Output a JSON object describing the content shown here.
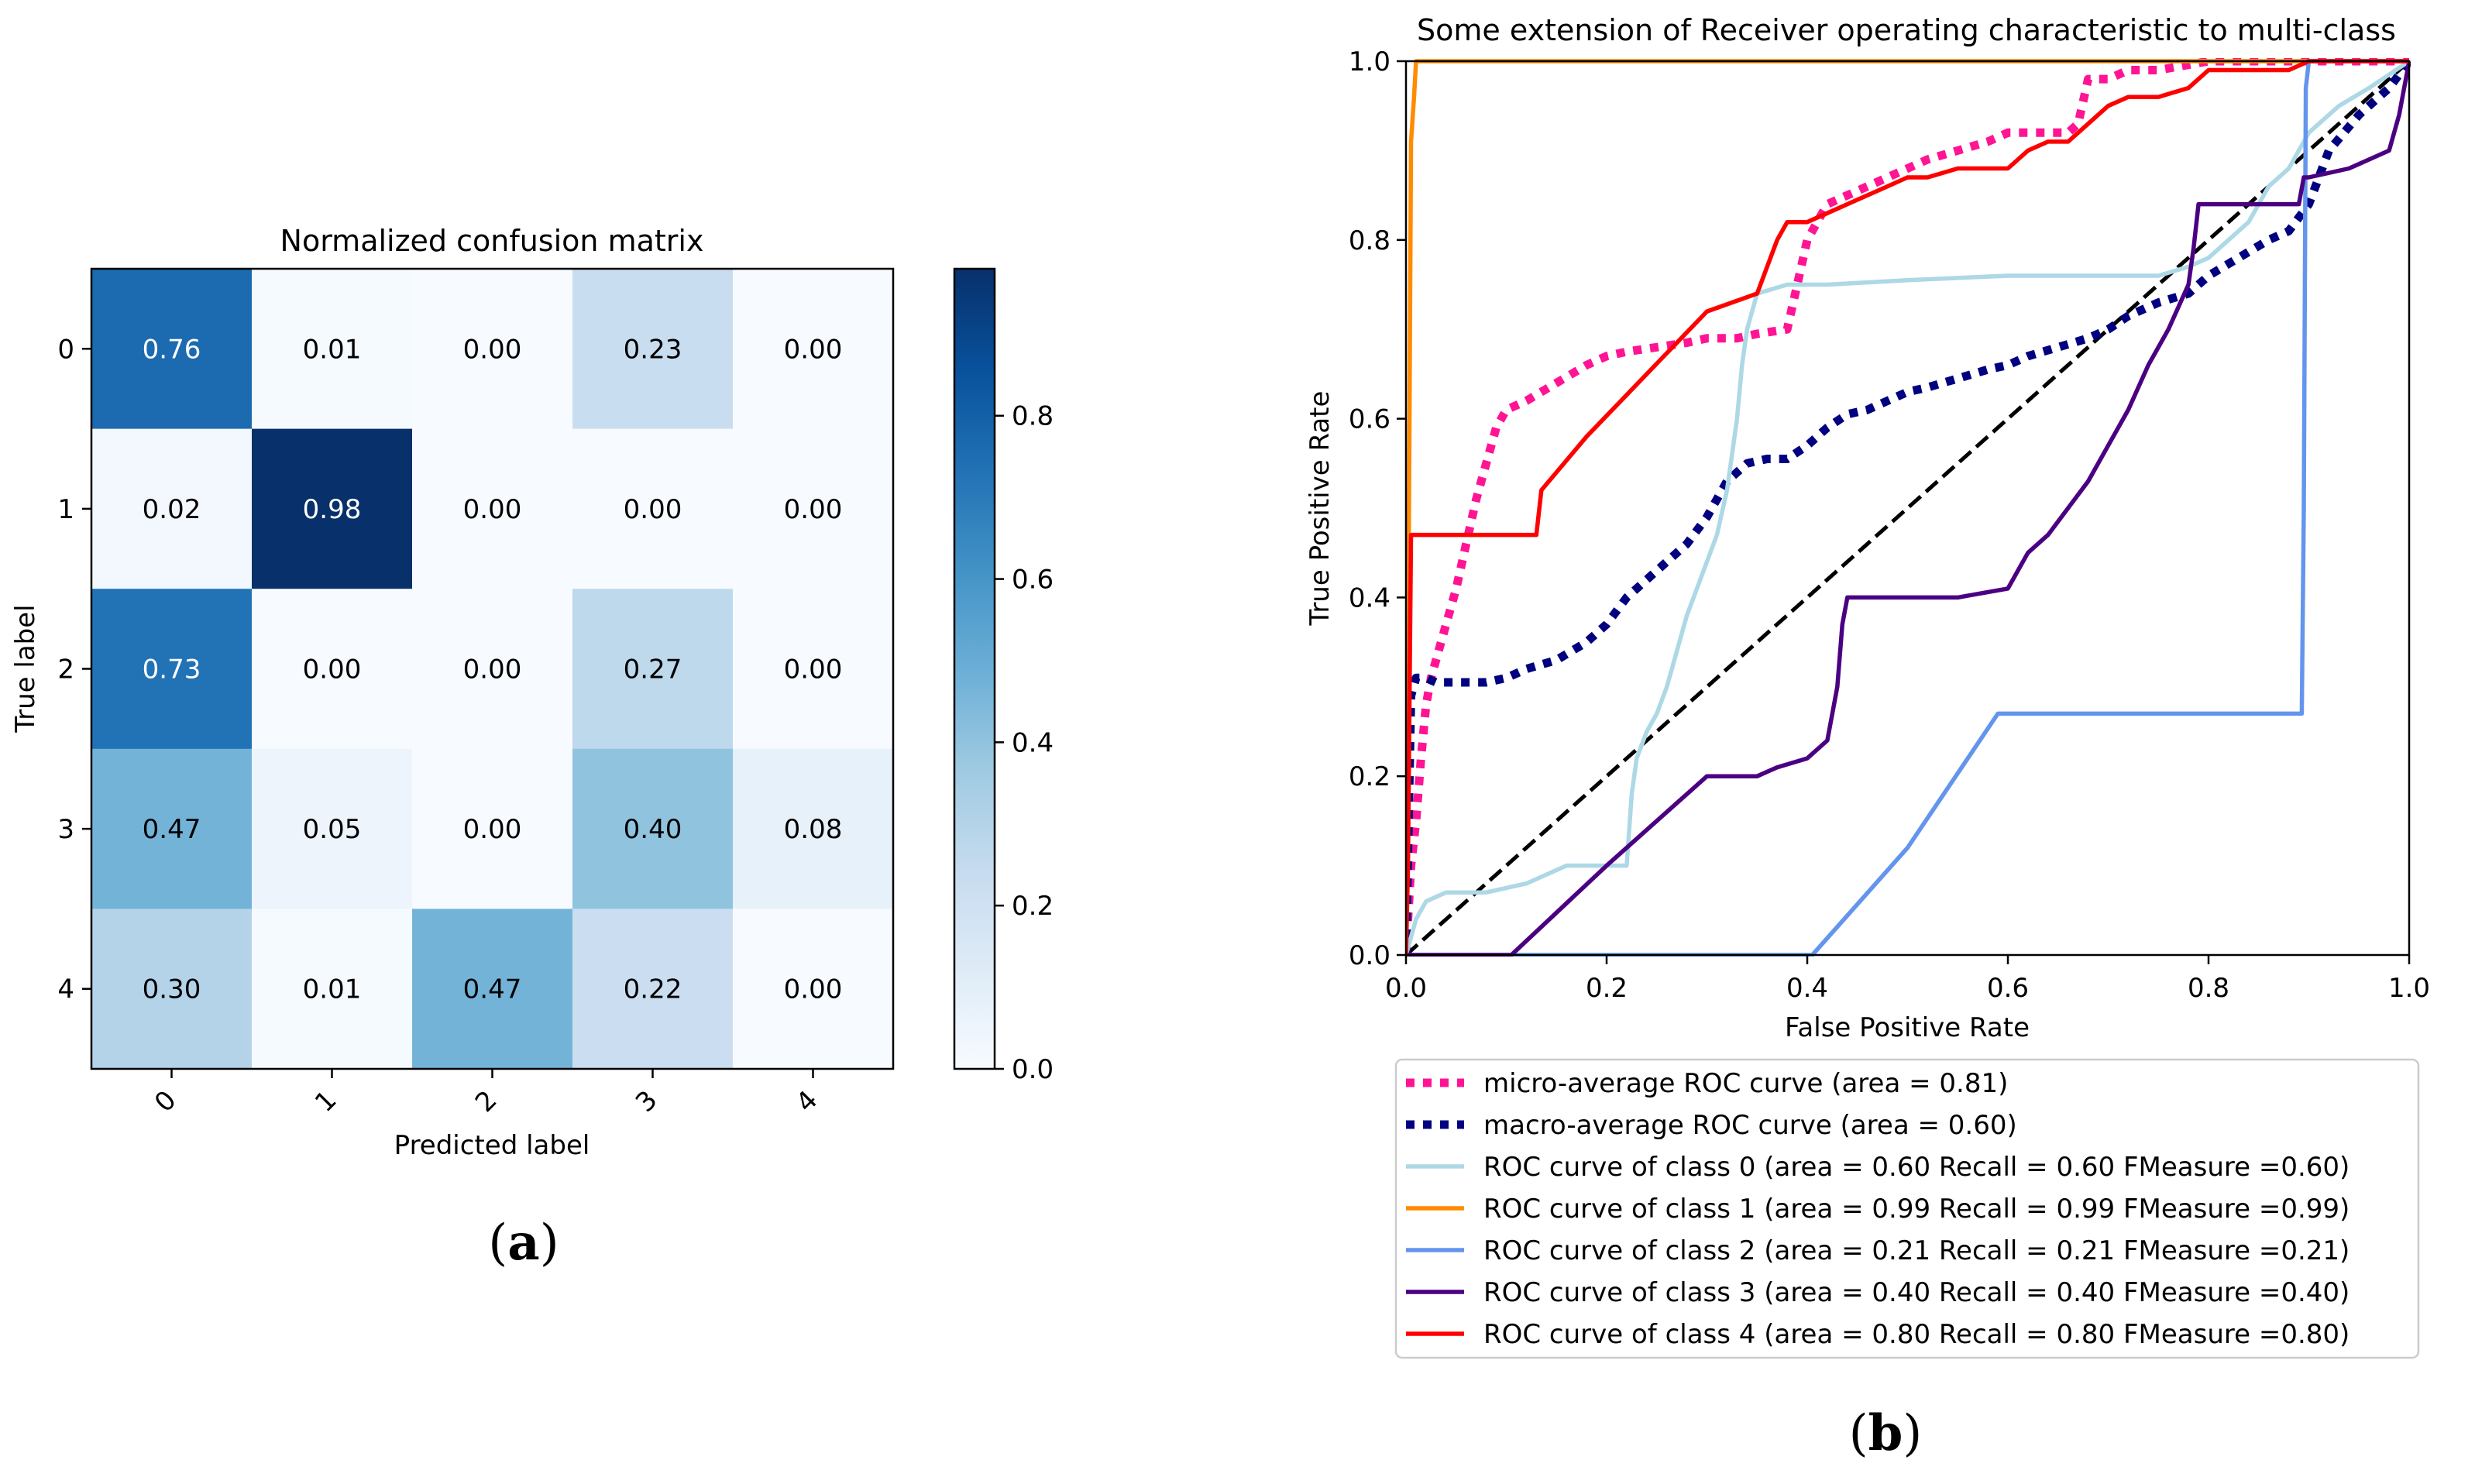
{
  "panel_labels": {
    "a": "a",
    "b": "b"
  },
  "chart_data": [
    {
      "type": "heatmap",
      "title": "Normalized confusion matrix",
      "xlabel": "Predicted label",
      "ylabel": "True label",
      "x_ticks": [
        "0",
        "1",
        "2",
        "3",
        "4"
      ],
      "y_ticks": [
        "0",
        "1",
        "2",
        "3",
        "4"
      ],
      "values": [
        [
          0.76,
          0.01,
          0.0,
          0.23,
          0.0
        ],
        [
          0.02,
          0.98,
          0.0,
          0.0,
          0.0
        ],
        [
          0.73,
          0.0,
          0.0,
          0.27,
          0.0
        ],
        [
          0.47,
          0.05,
          0.0,
          0.4,
          0.08
        ],
        [
          0.3,
          0.01,
          0.47,
          0.22,
          0.0
        ]
      ],
      "cell_labels": [
        [
          "0.76",
          "0.01",
          "0.00",
          "0.23",
          "0.00"
        ],
        [
          "0.02",
          "0.98",
          "0.00",
          "0.00",
          "0.00"
        ],
        [
          "0.73",
          "0.00",
          "0.00",
          "0.27",
          "0.00"
        ],
        [
          "0.47",
          "0.05",
          "0.00",
          "0.40",
          "0.08"
        ],
        [
          "0.30",
          "0.01",
          "0.47",
          "0.22",
          "0.00"
        ]
      ],
      "colorbar": {
        "min": 0.0,
        "max": 0.98,
        "ticks": [
          0.0,
          0.2,
          0.4,
          0.6,
          0.8
        ],
        "tick_labels": [
          "0.0",
          "0.2",
          "0.4",
          "0.6",
          "0.8"
        ],
        "colormap": "Blues",
        "low_color": "#f7fbff",
        "high_color": "#08306b"
      }
    },
    {
      "type": "line",
      "title": "Some extension of Receiver operating characteristic to multi-class",
      "xlabel": "False Positive Rate",
      "ylabel": "True Positive Rate",
      "xlim": [
        0.0,
        1.0
      ],
      "ylim": [
        0.0,
        1.0
      ],
      "x_ticks": [
        0.0,
        0.2,
        0.4,
        0.6,
        0.8,
        1.0
      ],
      "x_tick_labels": [
        "0.0",
        "0.2",
        "0.4",
        "0.6",
        "0.8",
        "1.0"
      ],
      "y_ticks": [
        0.0,
        0.2,
        0.4,
        0.6,
        0.8,
        1.0
      ],
      "y_tick_labels": [
        "0.0",
        "0.2",
        "0.4",
        "0.6",
        "0.8",
        "1.0"
      ],
      "legend_position": "below",
      "series": [
        {
          "name": "micro-average ROC curve (area = 0.81)",
          "color": "#ff1493",
          "style": "dotted",
          "width": "thick",
          "x": [
            0.0,
            0.005,
            0.01,
            0.015,
            0.02,
            0.025,
            0.03,
            0.04,
            0.05,
            0.06,
            0.07,
            0.08,
            0.09,
            0.1,
            0.12,
            0.15,
            0.18,
            0.2,
            0.22,
            0.25,
            0.28,
            0.3,
            0.33,
            0.35,
            0.38,
            0.39,
            0.4,
            0.42,
            0.44,
            0.46,
            0.48,
            0.5,
            0.52,
            0.55,
            0.58,
            0.6,
            0.62,
            0.64,
            0.66,
            0.67,
            0.68,
            0.7,
            0.72,
            0.75,
            0.8,
            0.9,
            1.0
          ],
          "y": [
            0.0,
            0.1,
            0.15,
            0.22,
            0.28,
            0.31,
            0.33,
            0.37,
            0.41,
            0.46,
            0.51,
            0.55,
            0.59,
            0.61,
            0.62,
            0.64,
            0.66,
            0.67,
            0.675,
            0.68,
            0.685,
            0.69,
            0.69,
            0.695,
            0.7,
            0.75,
            0.8,
            0.84,
            0.85,
            0.86,
            0.87,
            0.88,
            0.89,
            0.9,
            0.91,
            0.92,
            0.92,
            0.92,
            0.92,
            0.93,
            0.98,
            0.98,
            0.99,
            0.99,
            1.0,
            1.0,
            1.0
          ]
        },
        {
          "name": "macro-average ROC curve (area = 0.60)",
          "color": "#000080",
          "style": "dotted",
          "width": "thick",
          "x": [
            0.0,
            0.005,
            0.01,
            0.02,
            0.03,
            0.05,
            0.08,
            0.1,
            0.12,
            0.15,
            0.18,
            0.2,
            0.22,
            0.24,
            0.26,
            0.28,
            0.3,
            0.32,
            0.34,
            0.36,
            0.38,
            0.4,
            0.42,
            0.44,
            0.46,
            0.48,
            0.5,
            0.52,
            0.55,
            0.58,
            0.6,
            0.62,
            0.65,
            0.68,
            0.7,
            0.72,
            0.75,
            0.78,
            0.8,
            0.83,
            0.86,
            0.88,
            0.9,
            0.92,
            0.95,
            0.98,
            1.0
          ],
          "y": [
            0.0,
            0.29,
            0.31,
            0.31,
            0.305,
            0.305,
            0.305,
            0.31,
            0.32,
            0.33,
            0.35,
            0.37,
            0.4,
            0.42,
            0.44,
            0.46,
            0.49,
            0.53,
            0.55,
            0.555,
            0.555,
            0.57,
            0.59,
            0.605,
            0.61,
            0.62,
            0.63,
            0.635,
            0.645,
            0.655,
            0.66,
            0.67,
            0.68,
            0.69,
            0.7,
            0.715,
            0.73,
            0.74,
            0.76,
            0.78,
            0.8,
            0.81,
            0.84,
            0.9,
            0.94,
            0.97,
            1.0
          ]
        },
        {
          "name": "ROC curve of class 0 (area = 0.60  Recall = 0.60 FMeasure =0.60)",
          "color": "#add8e6",
          "style": "solid",
          "width": "normal",
          "x": [
            0.0,
            0.005,
            0.01,
            0.015,
            0.02,
            0.04,
            0.08,
            0.12,
            0.16,
            0.2,
            0.22,
            0.225,
            0.23,
            0.24,
            0.25,
            0.26,
            0.27,
            0.28,
            0.29,
            0.3,
            0.31,
            0.32,
            0.325,
            0.33,
            0.335,
            0.34,
            0.35,
            0.38,
            0.42,
            0.5,
            0.6,
            0.7,
            0.75,
            0.78,
            0.8,
            0.84,
            0.86,
            0.88,
            0.9,
            0.93,
            0.96,
            1.0
          ],
          "y": [
            0.0,
            0.02,
            0.04,
            0.05,
            0.06,
            0.07,
            0.07,
            0.08,
            0.1,
            0.1,
            0.1,
            0.18,
            0.22,
            0.25,
            0.27,
            0.3,
            0.34,
            0.38,
            0.41,
            0.44,
            0.47,
            0.52,
            0.56,
            0.6,
            0.66,
            0.7,
            0.74,
            0.75,
            0.75,
            0.755,
            0.76,
            0.76,
            0.76,
            0.77,
            0.78,
            0.82,
            0.86,
            0.88,
            0.92,
            0.95,
            0.97,
            1.0
          ]
        },
        {
          "name": "ROC curve of class 1 (area = 0.99  Recall = 0.99 FMeasure =0.99)",
          "color": "#ff8c00",
          "style": "solid",
          "width": "normal",
          "x": [
            0.0,
            0.003,
            0.005,
            0.008,
            0.01,
            0.2,
            0.6,
            1.0
          ],
          "y": [
            0.0,
            0.5,
            0.91,
            0.96,
            1.0,
            1.0,
            1.0,
            1.0
          ]
        },
        {
          "name": "ROC curve of class 2 (area = 0.21  Recall = 0.21 FMeasure =0.21)",
          "color": "#6495ed",
          "style": "solid",
          "width": "normal",
          "x": [
            0.0,
            0.2,
            0.4,
            0.405,
            0.5,
            0.59,
            0.7,
            0.8,
            0.893,
            0.895,
            0.897,
            0.9,
            1.0
          ],
          "y": [
            0.0,
            0.0,
            0.0,
            0.0,
            0.12,
            0.27,
            0.27,
            0.27,
            0.27,
            0.5,
            0.97,
            1.0,
            1.0
          ]
        },
        {
          "name": "ROC curve of class 3 (area = 0.40  Recall = 0.40 FMeasure =0.40)",
          "color": "#4b0082",
          "style": "solid",
          "width": "normal",
          "x": [
            0.0,
            0.1,
            0.105,
            0.2,
            0.3,
            0.35,
            0.37,
            0.4,
            0.42,
            0.43,
            0.435,
            0.44,
            0.5,
            0.55,
            0.6,
            0.61,
            0.62,
            0.64,
            0.66,
            0.68,
            0.7,
            0.72,
            0.74,
            0.76,
            0.78,
            0.785,
            0.79,
            0.8,
            0.85,
            0.89,
            0.895,
            0.9,
            0.94,
            0.98,
            0.99,
            1.0
          ],
          "y": [
            0.0,
            0.0,
            0.0,
            0.1,
            0.2,
            0.2,
            0.21,
            0.22,
            0.24,
            0.3,
            0.37,
            0.4,
            0.4,
            0.4,
            0.41,
            0.43,
            0.45,
            0.47,
            0.5,
            0.53,
            0.57,
            0.61,
            0.66,
            0.7,
            0.75,
            0.79,
            0.84,
            0.84,
            0.84,
            0.84,
            0.87,
            0.87,
            0.88,
            0.9,
            0.94,
            1.0
          ]
        },
        {
          "name": "ROC curve of class 4 (area = 0.80  Recall = 0.80 FMeasure =0.80)",
          "color": "#ff0000",
          "style": "solid",
          "width": "normal",
          "x": [
            0.0,
            0.002,
            0.005,
            0.13,
            0.135,
            0.18,
            0.24,
            0.3,
            0.35,
            0.36,
            0.37,
            0.38,
            0.4,
            0.42,
            0.44,
            0.46,
            0.48,
            0.5,
            0.52,
            0.55,
            0.6,
            0.62,
            0.64,
            0.66,
            0.68,
            0.7,
            0.72,
            0.75,
            0.78,
            0.8,
            0.85,
            0.88,
            0.9,
            0.95,
            1.0
          ],
          "y": [
            0.0,
            0.1,
            0.47,
            0.47,
            0.52,
            0.58,
            0.65,
            0.72,
            0.74,
            0.77,
            0.8,
            0.82,
            0.82,
            0.83,
            0.84,
            0.85,
            0.86,
            0.87,
            0.87,
            0.88,
            0.88,
            0.9,
            0.91,
            0.91,
            0.93,
            0.95,
            0.96,
            0.96,
            0.97,
            0.99,
            0.99,
            0.99,
            1.0,
            1.0,
            1.0
          ]
        },
        {
          "name": "",
          "color": "#000000",
          "style": "dashed",
          "width": "normal",
          "legend": false,
          "x": [
            0.0,
            1.0
          ],
          "y": [
            0.0,
            1.0
          ]
        }
      ]
    }
  ]
}
